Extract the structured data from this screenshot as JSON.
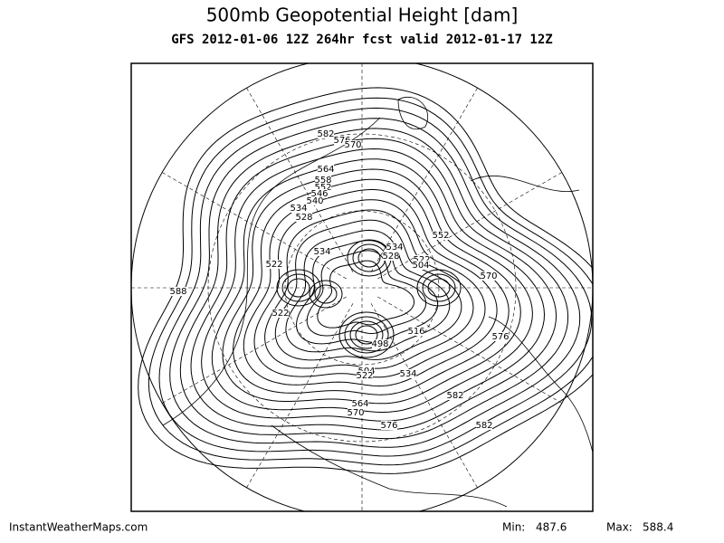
{
  "header": {
    "title": "500mb Geopotential Height [dam]",
    "subtitle": "GFS 2012-01-06 12Z 264hr fcst valid 2012-01-17 12Z"
  },
  "map": {
    "contour_labels": [
      582,
      576,
      570,
      564,
      558,
      552,
      546,
      540,
      534,
      528,
      552,
      534,
      528,
      522,
      534,
      522,
      504,
      570,
      588,
      522,
      516,
      576,
      498,
      504,
      522,
      534,
      582,
      564,
      570,
      576,
      582
    ]
  },
  "footer": {
    "site": "InstantWeatherMaps.com",
    "min_label": "Min:",
    "min_value": 487.6,
    "max_label": "Max:",
    "max_value": 588.4
  }
}
